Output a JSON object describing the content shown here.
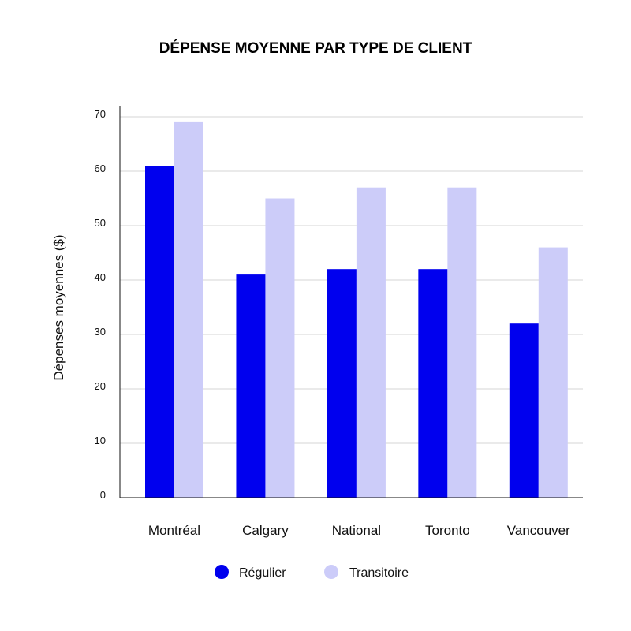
{
  "chart_data": {
    "type": "bar",
    "title": "DÉPENSE MOYENNE PAR TYPE DE CLIENT",
    "xlabel": "",
    "ylabel": "Dépenses moyennes ($)",
    "categories": [
      "Montréal",
      "Calgary",
      "National",
      "Toronto",
      "Vancouver"
    ],
    "series": [
      {
        "name": "Régulier",
        "color": "#0000ee",
        "values": [
          61,
          41,
          42,
          42,
          32
        ]
      },
      {
        "name": "Transitoire",
        "color": "#ccccf9",
        "values": [
          69,
          55,
          57,
          57,
          46
        ]
      }
    ],
    "ylim": [
      0,
      70
    ],
    "yticks": [
      "0",
      "10",
      "20",
      "30",
      "40",
      "50",
      "60",
      "70"
    ],
    "grid": true,
    "legend_position": "bottom"
  }
}
